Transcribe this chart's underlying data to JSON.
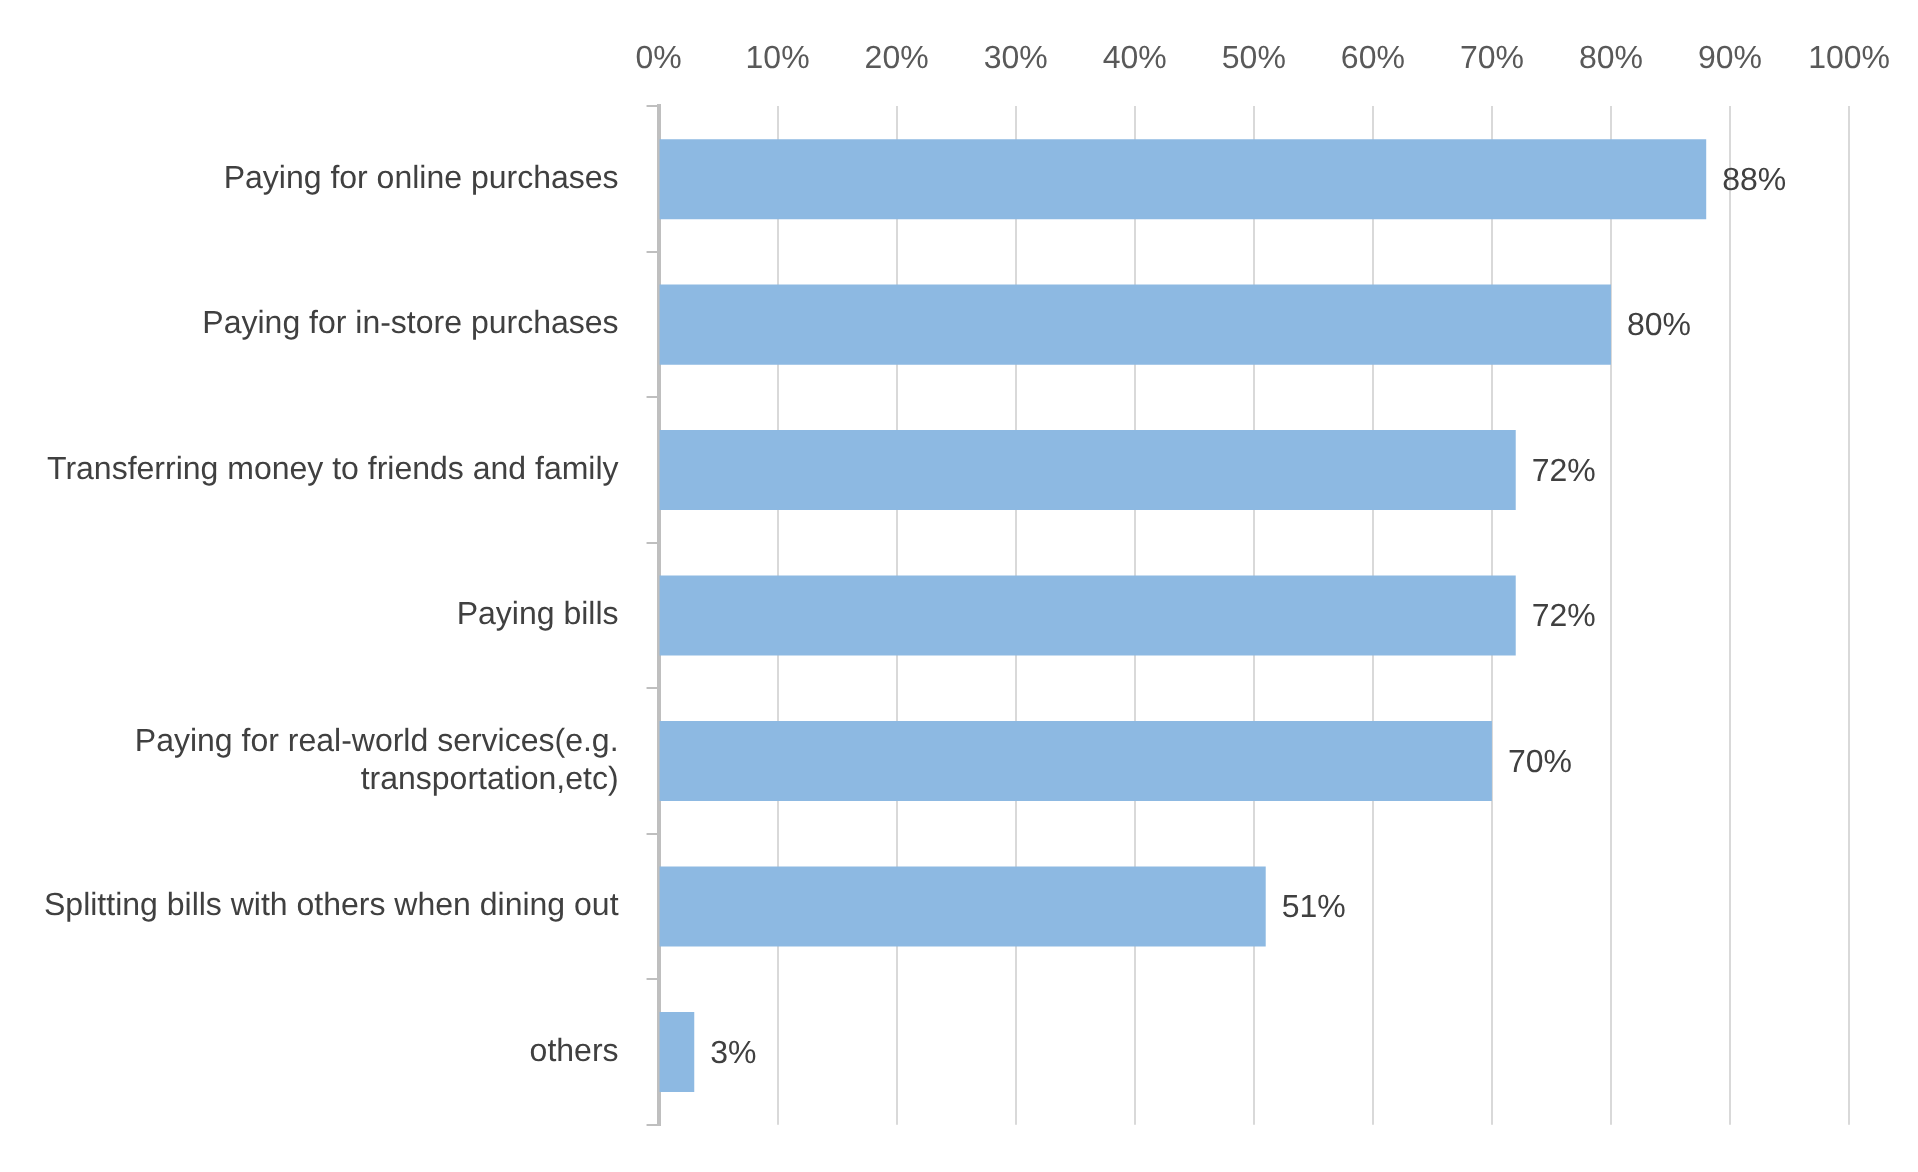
{
  "chart_data": {
    "type": "bar",
    "orientation": "horizontal",
    "categories": [
      "Paying for online purchases",
      "Paying for in-store purchases",
      "Transferring money to friends and family",
      "Paying bills",
      "Paying for real-world services(e.g. transportation,etc)",
      "Splitting bills with others when dining out",
      "others"
    ],
    "values": [
      88,
      80,
      72,
      72,
      70,
      51,
      3
    ],
    "value_labels": [
      "88%",
      "80%",
      "72%",
      "72%",
      "70%",
      "51%",
      "3%"
    ],
    "color": "#8db9e2",
    "xlim": [
      0,
      100
    ],
    "xticks": [
      {
        "value": 0,
        "label": "0%"
      },
      {
        "value": 10,
        "label": "10%"
      },
      {
        "value": 20,
        "label": "20%"
      },
      {
        "value": 30,
        "label": "30%"
      },
      {
        "value": 40,
        "label": "40%"
      },
      {
        "value": 50,
        "label": "50%"
      },
      {
        "value": 60,
        "label": "60%"
      },
      {
        "value": 70,
        "label": "70%"
      },
      {
        "value": 80,
        "label": "80%"
      },
      {
        "value": 90,
        "label": "90%"
      },
      {
        "value": 100,
        "label": "100%"
      }
    ],
    "grid": "x",
    "legend": false
  }
}
